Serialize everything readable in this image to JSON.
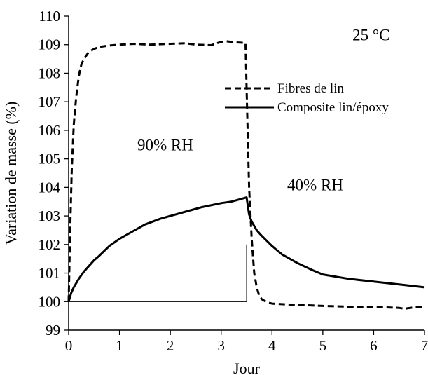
{
  "chart_data": {
    "type": "line",
    "title": "",
    "xlabel": "Jour",
    "ylabel": "Variation de masse (%)",
    "xlim": [
      0,
      7
    ],
    "ylim": [
      99,
      110
    ],
    "x_ticks": [
      0,
      1,
      2,
      3,
      4,
      5,
      6,
      7
    ],
    "y_ticks": [
      99,
      100,
      101,
      102,
      103,
      104,
      105,
      106,
      107,
      108,
      109,
      110
    ],
    "grid": false,
    "legend_position": "upper-right",
    "annotations": [
      {
        "text": "25 °C",
        "x": 5.95,
        "y": 109.15
      },
      {
        "text": "90% RH",
        "x": 1.9,
        "y": 105.3
      },
      {
        "text": "40% RH",
        "x": 4.85,
        "y": 103.9
      }
    ],
    "reference_lines": [
      {
        "type": "horizontal",
        "y": 100,
        "x_from": 0,
        "x_to": 3.5
      },
      {
        "type": "vertical",
        "x": 3.5,
        "y_from": 100,
        "y_to": 102
      }
    ],
    "series": [
      {
        "name": "Fibres de lin",
        "style": "dashed",
        "color": "#000000",
        "x": [
          0,
          0.03,
          0.06,
          0.1,
          0.15,
          0.2,
          0.25,
          0.3,
          0.4,
          0.5,
          0.6,
          0.8,
          1.0,
          1.3,
          1.6,
          2.0,
          2.3,
          2.5,
          2.8,
          3.0,
          3.1,
          3.2,
          3.3,
          3.4,
          3.48,
          3.5,
          3.52,
          3.55,
          3.6,
          3.65,
          3.7,
          3.75,
          3.8,
          3.9,
          4.0,
          4.3,
          4.6,
          5.0,
          5.4,
          5.8,
          6.2,
          6.5,
          6.6,
          6.8,
          7.0
        ],
        "y": [
          100,
          102.5,
          104.6,
          106.2,
          107.2,
          107.9,
          108.3,
          108.5,
          108.75,
          108.85,
          108.92,
          108.97,
          109.0,
          109.03,
          109.0,
          109.03,
          109.05,
          109.0,
          108.98,
          109.1,
          109.12,
          109.1,
          109.08,
          109.07,
          109.05,
          107.5,
          106.0,
          104.0,
          102.2,
          101.0,
          100.5,
          100.2,
          100.08,
          99.98,
          99.93,
          99.9,
          99.88,
          99.85,
          99.83,
          99.8,
          99.8,
          99.78,
          99.75,
          99.8,
          99.8
        ]
      },
      {
        "name": "Composite lin/époxy",
        "style": "solid",
        "color": "#000000",
        "x": [
          0,
          0.05,
          0.1,
          0.2,
          0.3,
          0.4,
          0.5,
          0.6,
          0.8,
          1.0,
          1.2,
          1.5,
          1.8,
          2.0,
          2.3,
          2.6,
          3.0,
          3.2,
          3.4,
          3.5,
          3.52,
          3.55,
          3.6,
          3.7,
          3.8,
          4.0,
          4.2,
          4.5,
          4.8,
          5.0,
          5.5,
          6.0,
          6.5,
          7.0
        ],
        "y": [
          100,
          100.3,
          100.5,
          100.8,
          101.05,
          101.25,
          101.45,
          101.6,
          101.95,
          102.2,
          102.4,
          102.7,
          102.9,
          103.0,
          103.15,
          103.3,
          103.45,
          103.5,
          103.6,
          103.65,
          103.4,
          103.05,
          102.8,
          102.5,
          102.3,
          101.95,
          101.65,
          101.35,
          101.1,
          100.95,
          100.8,
          100.7,
          100.6,
          100.5
        ]
      }
    ]
  }
}
